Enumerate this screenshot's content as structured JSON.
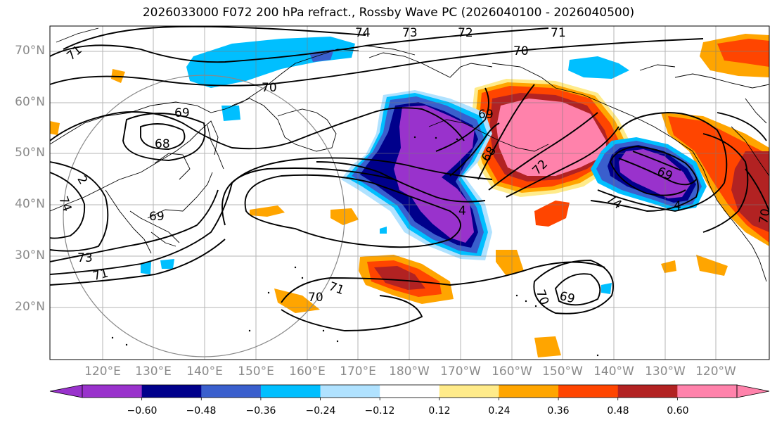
{
  "title": "2026033000 F072 200 hPa refract., Rossby Wave PC (2026040100 - 2026040500)",
  "map": {
    "lat_labels": [
      "70°N",
      "60°N",
      "50°N",
      "40°N",
      "30°N",
      "20°N"
    ],
    "lon_labels": [
      "120°E",
      "130°E",
      "140°E",
      "150°E",
      "160°E",
      "170°E",
      "180°W",
      "170°W",
      "160°W",
      "150°W",
      "140°W",
      "130°W",
      "120°W"
    ],
    "contour_labels": [
      {
        "text": "74"
      },
      {
        "text": "73"
      },
      {
        "text": "72"
      },
      {
        "text": "71"
      },
      {
        "text": "71"
      },
      {
        "text": "70"
      },
      {
        "text": "70"
      },
      {
        "text": "69"
      },
      {
        "text": "68"
      },
      {
        "text": "69"
      },
      {
        "text": "68"
      },
      {
        "text": "72"
      },
      {
        "text": "69"
      },
      {
        "text": "74"
      },
      {
        "text": "4"
      },
      {
        "text": "69"
      },
      {
        "text": "73"
      },
      {
        "text": "71"
      },
      {
        "text": "71"
      },
      {
        "text": "70"
      },
      {
        "text": "70"
      },
      {
        "text": "69"
      },
      {
        "text": "4"
      },
      {
        "text": "2"
      },
      {
        "text": "70"
      },
      {
        "text": "74"
      }
    ]
  },
  "colorbar": {
    "ticks": [
      "−0.60",
      "−0.48",
      "−0.36",
      "−0.24",
      "−0.12",
      "0.12",
      "0.24",
      "0.36",
      "0.48",
      "0.60"
    ],
    "colors": [
      "#9932cc",
      "#00008b",
      "#3a5fcd",
      "#00bfff",
      "#b0e2ff",
      "#ffffff",
      "#ffeb8a",
      "#ffa500",
      "#ff4500",
      "#b22222",
      "#ff82ab"
    ]
  }
}
